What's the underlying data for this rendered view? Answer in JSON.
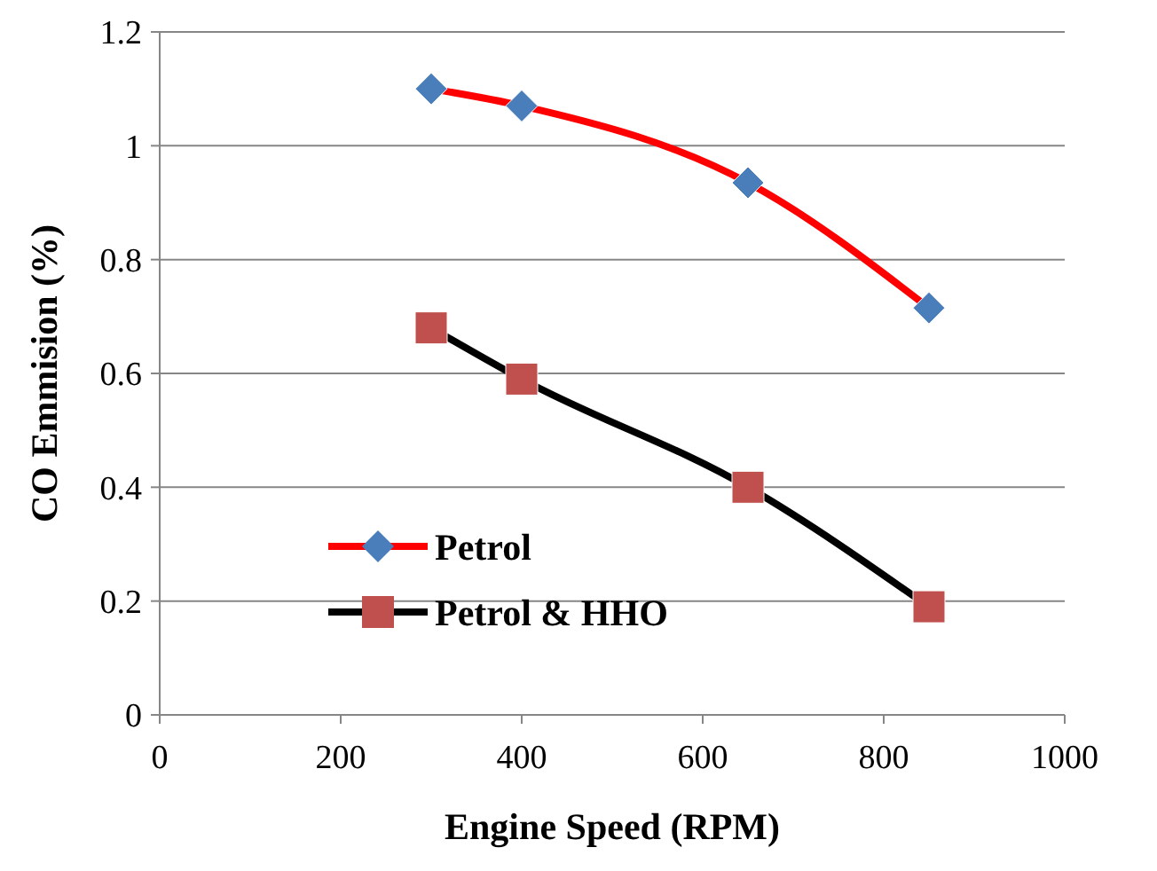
{
  "chart_data": {
    "type": "line",
    "xlabel": "Engine Speed (RPM)",
    "ylabel": "CO Emmision (%)",
    "xlim": [
      0,
      1000
    ],
    "xticks": [
      0,
      200,
      400,
      600,
      800,
      1000
    ],
    "ylim": [
      0,
      1.2
    ],
    "yticks": [
      0,
      {
        "value": 0.2,
        "label": "0.2"
      },
      {
        "value": 0.4,
        "label": "0.4"
      },
      {
        "value": 0.6,
        "label": "0.6"
      },
      {
        "value": 0.8,
        "label": "0.8"
      },
      1,
      {
        "value": 1.2,
        "label": "1.2"
      }
    ],
    "grid": "y",
    "legend": "bottom left",
    "series": [
      {
        "name": "Petrol",
        "color": "#ff0000",
        "marker": "diamond",
        "x": [
          300,
          400,
          650,
          850
        ],
        "values": [
          1.1,
          1.07,
          0.935,
          0.715
        ]
      },
      {
        "name": "Petrol & HHO",
        "color": "#000000",
        "marker": "square",
        "x": [
          300,
          400,
          650,
          850
        ],
        "values": [
          0.68,
          0.59,
          0.4,
          0.19
        ]
      }
    ]
  }
}
